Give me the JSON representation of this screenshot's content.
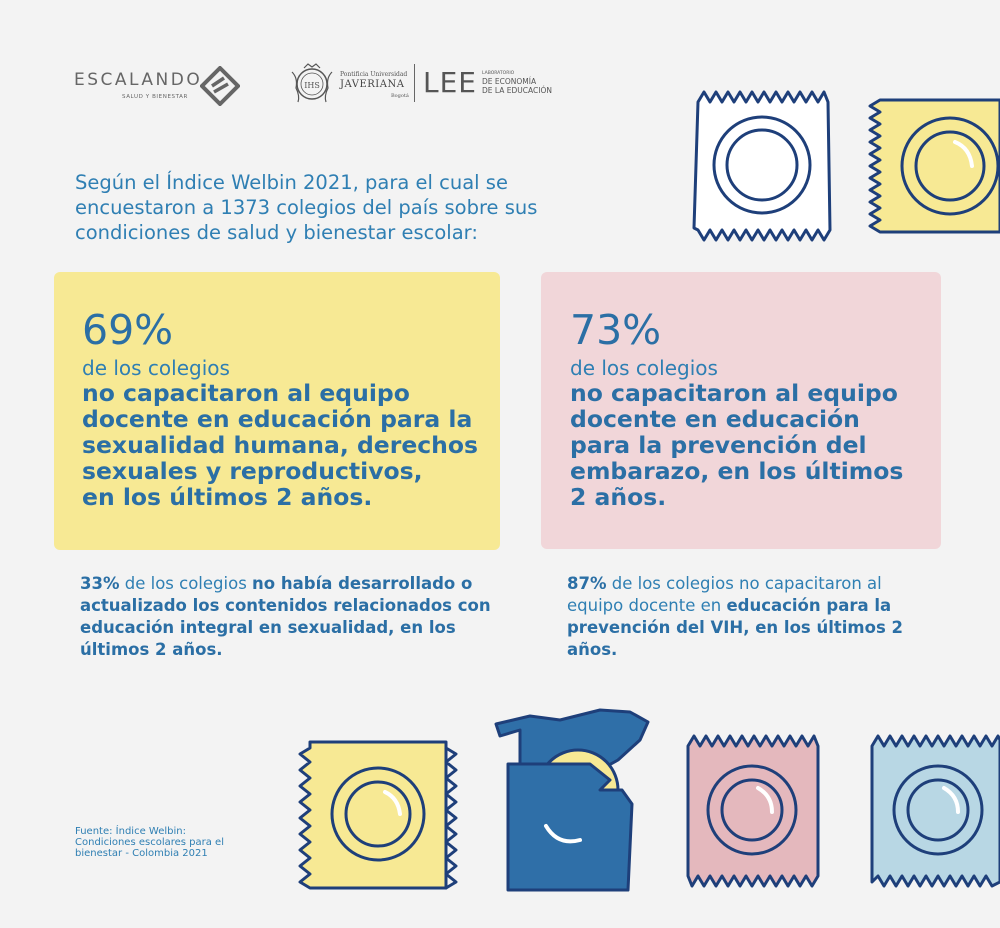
{
  "logos": {
    "escalando": {
      "word": "ESCALANDO",
      "sub": "SALUD Y BIENESTAR"
    },
    "javeriana": {
      "pontificia": "Pontificia Universidad",
      "name": "JAVERIANA",
      "city": "Bogotá",
      "seal_text": "IHS"
    },
    "lee": {
      "acronym": "LEE",
      "lab": "LABORATORIO",
      "line1": "DE ECONOMÍA",
      "line2": "DE LA EDUCACIÓN"
    }
  },
  "intro": {
    "line1": "Según el Índice Welbin 2021, para el cual se",
    "line2": "encuestaron a 1373 colegios del país sobre sus",
    "line3": "condiciones de salud y bienestar escolar:"
  },
  "card_left": {
    "percent": "69%",
    "lead": "de los colegios",
    "body": [
      "no capacitaron al equipo",
      "docente en educación para la",
      "sexualidad humana, derechos",
      "sexuales y reproductivos,",
      "en los últimos 2 años."
    ]
  },
  "card_right": {
    "percent": "73%",
    "lead": "de los colegios",
    "body": [
      "no capacitaron al equipo",
      "docente en educación",
      "para la prevención del",
      "embarazo, en los últimos",
      "2 años."
    ]
  },
  "note_left": {
    "pct": "33%",
    "part1": " de los colegios ",
    "bold1": "no había desarrollado o actualizado los contenidos relacionados con educación integral en sexualidad, en los últimos 2 años."
  },
  "note_right": {
    "pct": "87%",
    "part1": " de los colegios no capacitaron al equipo docente en ",
    "bold1": "educación para la prevención del VIH, en los últimos 2 años."
  },
  "source": {
    "line1": "Fuente: Índice Welbin:",
    "line2": "Condiciones escolares para el",
    "line3": "bienestar - Colombia 2021"
  },
  "colors": {
    "background": "#f3f3f3",
    "yellow": "#f7e994",
    "pink": "#f1d6d9",
    "blue_text": "#2f7fb3",
    "dark_blue": "#2b6fa5",
    "outline": "#1e3f7a",
    "condom_pink": "#e4b8bd",
    "condom_light_blue": "#b8d7e4",
    "condom_blue": "#2f6fa8"
  }
}
